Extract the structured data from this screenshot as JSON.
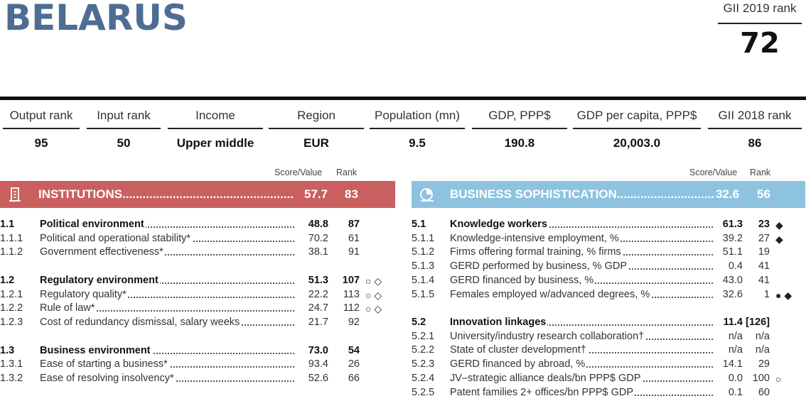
{
  "header": {
    "country": "BELARUS",
    "gii_label": "GII 2019 rank",
    "gii_rank": "72"
  },
  "stats": [
    {
      "label": "Output rank",
      "value": "95"
    },
    {
      "label": "Input rank",
      "value": "50"
    },
    {
      "label": "Income",
      "value": "Upper middle"
    },
    {
      "label": "Region",
      "value": "EUR"
    },
    {
      "label": "Population (mn)",
      "value": "9.5"
    },
    {
      "label": "GDP, PPP$",
      "value": "190.8"
    },
    {
      "label": "GDP per capita, PPP$",
      "value": "20,003.0"
    },
    {
      "label": "GII 2018 rank",
      "value": "86"
    }
  ],
  "columns": {
    "score": "Score/Value",
    "rank": "Rank"
  },
  "left_panel": {
    "title": "INSTITUTIONS",
    "score": "57.7",
    "rank": "83",
    "color": "#c9605f",
    "icon": "institutions-icon",
    "rows": [
      {
        "code": "1.1",
        "label": "Political environment",
        "score": "48.8",
        "rank": "87",
        "bold": true,
        "marks": ""
      },
      {
        "code": "1.1.1",
        "label": "Political and operational stability*",
        "score": "70.2",
        "rank": "61",
        "bold": false,
        "marks": ""
      },
      {
        "code": "1.1.2",
        "label": "Government effectiveness*",
        "score": "38.1",
        "rank": "91",
        "bold": false,
        "marks": ""
      },
      {
        "code": "1.2",
        "label": "Regulatory environment",
        "score": "51.3",
        "rank": "107",
        "bold": true,
        "marks": "○ ◇"
      },
      {
        "code": "1.2.1",
        "label": "Regulatory quality*",
        "score": "22.2",
        "rank": "113",
        "bold": false,
        "marks": "○ ◇"
      },
      {
        "code": "1.2.2",
        "label": "Rule of law*",
        "score": "24.7",
        "rank": "112",
        "bold": false,
        "marks": "○ ◇"
      },
      {
        "code": "1.2.3",
        "label": "Cost of redundancy dismissal, salary weeks",
        "score": "21.7",
        "rank": "92",
        "bold": false,
        "marks": ""
      },
      {
        "code": "1.3",
        "label": "Business environment",
        "score": "73.0",
        "rank": "54",
        "bold": true,
        "marks": ""
      },
      {
        "code": "1.3.1",
        "label": "Ease of starting a business*",
        "score": "93.4",
        "rank": "26",
        "bold": false,
        "marks": ""
      },
      {
        "code": "1.3.2",
        "label": "Ease of resolving insolvency*",
        "score": "52.6",
        "rank": "66",
        "bold": false,
        "marks": ""
      }
    ]
  },
  "right_panel": {
    "title": "BUSINESS SOPHISTICATION",
    "score": "32.6",
    "rank": "56",
    "color": "#8ec3e0",
    "icon": "business-sophistication-icon",
    "rows": [
      {
        "code": "5.1",
        "label": "Knowledge workers",
        "score": "61.3",
        "rank": "23",
        "bold": true,
        "marks": "◆"
      },
      {
        "code": "5.1.1",
        "label": "Knowledge-intensive employment, %",
        "score": "39.2",
        "rank": "27",
        "bold": false,
        "marks": "◆"
      },
      {
        "code": "5.1.2",
        "label": "Firms offering formal training, % firms",
        "score": "51.1",
        "rank": "19",
        "bold": false,
        "marks": ""
      },
      {
        "code": "5.1.3",
        "label": "GERD performed by business, % GDP",
        "score": "0.4",
        "rank": "41",
        "bold": false,
        "marks": ""
      },
      {
        "code": "5.1.4",
        "label": "GERD financed by business, %",
        "score": "43.0",
        "rank": "41",
        "bold": false,
        "marks": ""
      },
      {
        "code": "5.1.5",
        "label": "Females employed w/advanced degrees, %",
        "score": "32.6",
        "rank": "1",
        "bold": false,
        "marks": "● ◆"
      },
      {
        "code": "5.2",
        "label": "Innovation linkages",
        "score": "11.4",
        "rank": "[126]",
        "bold": true,
        "marks": ""
      },
      {
        "code": "5.2.1",
        "label": "University/industry research collaboration†",
        "score": "n/a",
        "rank": "n/a",
        "bold": false,
        "marks": ""
      },
      {
        "code": "5.2.2",
        "label": "State of cluster development†",
        "score": "n/a",
        "rank": "n/a",
        "bold": false,
        "marks": ""
      },
      {
        "code": "5.2.3",
        "label": "GERD financed by abroad, %",
        "score": "14.1",
        "rank": "29",
        "bold": false,
        "marks": ""
      },
      {
        "code": "5.2.4",
        "label": "JV–strategic alliance deals/bn PPP$ GDP",
        "score": "0.0",
        "rank": "100",
        "bold": false,
        "marks": "○"
      },
      {
        "code": "5.2.5",
        "label": "Patent families 2+ offices/bn PPP$ GDP",
        "score": "0.1",
        "rank": "60",
        "bold": false,
        "marks": ""
      }
    ]
  }
}
